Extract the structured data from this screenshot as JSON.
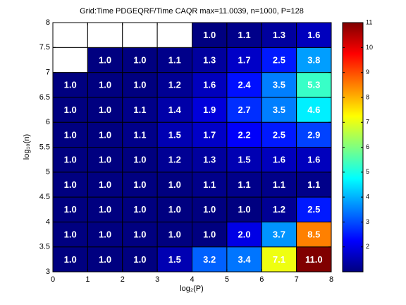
{
  "chart_data": {
    "type": "heatmap",
    "title": "Grid:Time PDGEQRF/Time CAQR  max=11.0039, n=1000, P=128",
    "xlabel": "log₂(P)",
    "ylabel": "log₁₀(n)",
    "xlim": [
      0,
      8
    ],
    "ylim": [
      3,
      8
    ],
    "xticks": [
      0,
      1,
      2,
      3,
      4,
      5,
      6,
      7,
      8
    ],
    "yticks": [
      3,
      3.5,
      4,
      4.5,
      5,
      5.5,
      6,
      6.5,
      7,
      7.5,
      8
    ],
    "colormap": "jet",
    "clim": [
      1,
      11.0039
    ],
    "cticks": [
      2,
      3,
      4,
      5,
      6,
      7,
      8,
      9,
      10,
      11
    ],
    "values": [
      [
        1.0,
        1.0,
        1.0,
        1.5,
        3.2,
        3.4,
        7.1,
        11.0
      ],
      [
        1.0,
        1.0,
        1.0,
        1.0,
        1.0,
        2.0,
        3.7,
        8.5
      ],
      [
        1.0,
        1.0,
        1.0,
        1.0,
        1.0,
        1.0,
        1.2,
        2.5
      ],
      [
        1.0,
        1.0,
        1.0,
        1.0,
        1.1,
        1.1,
        1.1,
        1.1
      ],
      [
        1.0,
        1.0,
        1.0,
        1.2,
        1.3,
        1.5,
        1.6,
        1.6
      ],
      [
        1.0,
        1.0,
        1.1,
        1.5,
        1.7,
        2.2,
        2.5,
        2.9
      ],
      [
        1.0,
        1.0,
        1.1,
        1.4,
        1.9,
        2.7,
        3.5,
        4.6
      ],
      [
        1.0,
        1.0,
        1.0,
        1.2,
        1.6,
        2.4,
        3.5,
        5.3
      ],
      [
        null,
        1.0,
        1.0,
        1.1,
        1.3,
        1.7,
        2.5,
        3.8
      ],
      [
        null,
        null,
        null,
        null,
        1.0,
        1.1,
        1.3,
        1.6
      ]
    ],
    "value_labels": [
      [
        "1.0",
        "1.0",
        "1.0",
        "1.5",
        "3.2",
        "3.4",
        "7.1",
        "11.0"
      ],
      [
        "1.0",
        "1.0",
        "1.0",
        "1.0",
        "1.0",
        "2.0",
        "3.7",
        "8.5"
      ],
      [
        "1.0",
        "1.0",
        "1.0",
        "1.0",
        "1.0",
        "1.0",
        "1.2",
        "2.5"
      ],
      [
        "1.0",
        "1.0",
        "1.0",
        "1.0",
        "1.1",
        "1.1",
        "1.1",
        "1.1"
      ],
      [
        "1.0",
        "1.0",
        "1.0",
        "1.2",
        "1.3",
        "1.5",
        "1.6",
        "1.6"
      ],
      [
        "1.0",
        "1.0",
        "1.1",
        "1.5",
        "1.7",
        "2.2",
        "2.5",
        "2.9"
      ],
      [
        "1.0",
        "1.0",
        "1.1",
        "1.4",
        "1.9",
        "2.7",
        "3.5",
        "4.6"
      ],
      [
        "1.0",
        "1.0",
        "1.0",
        "1.2",
        "1.6",
        "2.4",
        "3.5",
        "5.3"
      ],
      [
        null,
        "1.0",
        "1.0",
        "1.1",
        "1.3",
        "1.7",
        "2.5",
        "3.8"
      ],
      [
        null,
        null,
        null,
        null,
        "1.0",
        "1.1",
        "1.3",
        "1.6"
      ]
    ]
  }
}
